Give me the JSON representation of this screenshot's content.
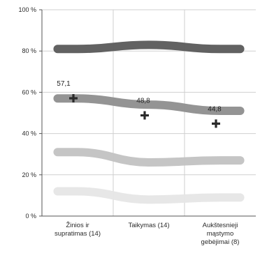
{
  "chart_data": {
    "type": "line",
    "categories": [
      [
        "Žinios ir",
        "supratimas (14)"
      ],
      [
        "Taikymas (14)"
      ],
      [
        "Aukštesnieji",
        "mąstymo",
        "gebėjimai (8)"
      ]
    ],
    "ylim": [
      0,
      100
    ],
    "yticks": [
      {
        "value": 0,
        "label": "0 %"
      },
      {
        "value": 20,
        "label": "20 %"
      },
      {
        "value": 40,
        "label": "40 %"
      },
      {
        "value": 60,
        "label": "60 %"
      },
      {
        "value": 80,
        "label": "80 %"
      },
      {
        "value": 100,
        "label": "100 %"
      }
    ],
    "grid": true,
    "series": [
      {
        "values": [
          81,
          83,
          81
        ],
        "color": "#5a5a5a",
        "style": "band"
      },
      {
        "values": [
          57,
          54,
          51
        ],
        "color": "#8e8e8e",
        "style": "band"
      },
      {
        "values": [
          31,
          26,
          27
        ],
        "color": "#c2c2c2",
        "style": "band"
      },
      {
        "values": [
          12,
          8,
          9
        ],
        "color": "#e6e6e6",
        "style": "band"
      },
      {
        "values": [
          57.1,
          48.8,
          44.8
        ],
        "labels": [
          "57,1",
          "48,8",
          "44,8"
        ],
        "color": "#2a2a2a",
        "style": "marker",
        "marker": "plus"
      }
    ]
  }
}
